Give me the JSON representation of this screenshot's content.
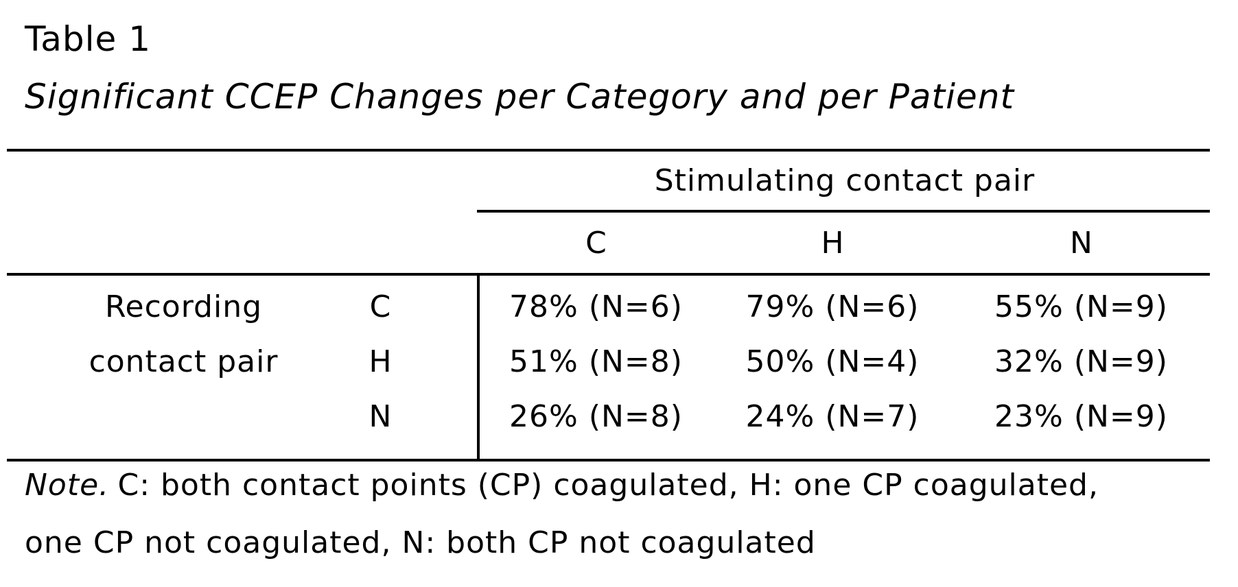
{
  "document": {
    "title": "Table 1",
    "caption": "Significant CCEP Changes per Category and per Patient"
  },
  "table": {
    "column_group_header": "Stimulating contact pair",
    "row_group_header": {
      "line1": "Recording",
      "line2": "contact pair"
    },
    "column_headers": [
      "C",
      "H",
      "N"
    ],
    "rows": [
      {
        "label": "C",
        "values": [
          "78% (N=6)",
          "79% (N=6)",
          "55% (N=9)"
        ]
      },
      {
        "label": "H",
        "values": [
          "51% (N=8)",
          "50% (N=4)",
          "32% (N=9)"
        ]
      },
      {
        "label": "N",
        "values": [
          "26% (N=8)",
          "24% (N=7)",
          "23% (N=9)"
        ]
      }
    ]
  },
  "note": {
    "prefix": "Note.",
    "line1": "C: both contact points (CP) coagulated, H: one CP coagulated,",
    "line2": "one CP not coagulated, N: both CP not coagulated"
  },
  "colors": {
    "background": "#ffffff",
    "text": "#000000",
    "rule": "#000000"
  }
}
